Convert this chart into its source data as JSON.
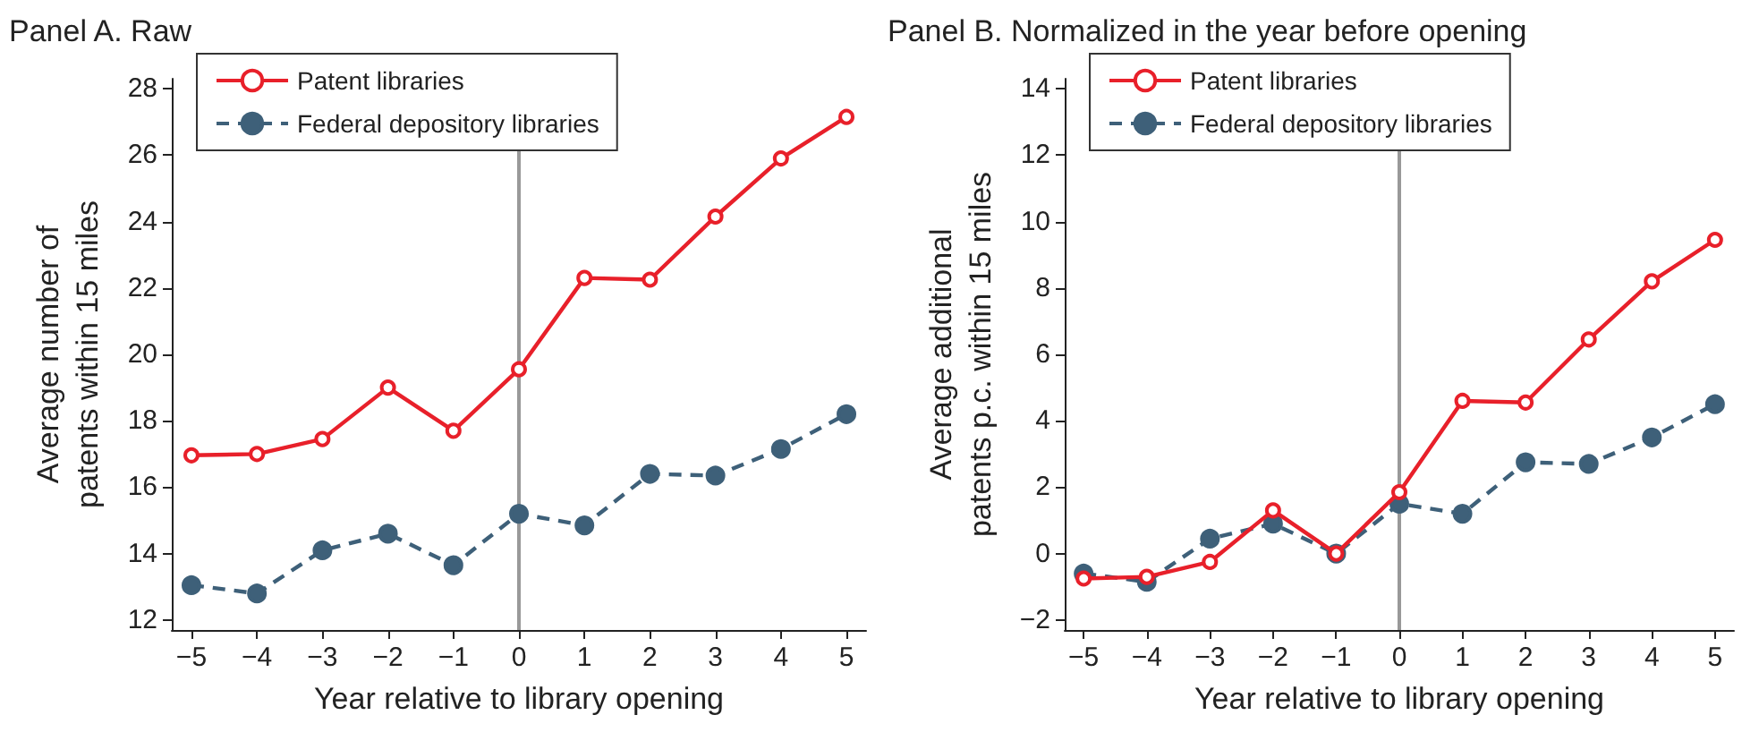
{
  "chart_data": [
    {
      "type": "line",
      "title": "Panel A. Raw",
      "xlabel": "Year relative to library opening",
      "ylabel": "Average number of\npatents within 15 miles",
      "x": [
        -5,
        -4,
        -3,
        -2,
        -1,
        0,
        1,
        2,
        3,
        4,
        5
      ],
      "xlim": [
        -5.3,
        5.3
      ],
      "xticks": [
        -5,
        -4,
        -3,
        -2,
        -1,
        0,
        1,
        2,
        3,
        4,
        5
      ],
      "ylim": [
        11.7,
        28.3
      ],
      "yticks": [
        12,
        14,
        16,
        18,
        20,
        22,
        24,
        26,
        28
      ],
      "grid": false,
      "legend": "top left",
      "marker": "circle",
      "ref_lines": [
        {
          "axis": "x",
          "value": 0,
          "color": "#999999"
        }
      ],
      "series": [
        {
          "name": "Patent libraries",
          "color": "#e8202a",
          "line_style": "solid",
          "values": [
            16.96,
            17.0,
            17.45,
            19.0,
            17.7,
            19.55,
            22.3,
            22.25,
            24.15,
            25.9,
            27.15
          ]
        },
        {
          "name": "Federal depository libraries",
          "color": "#3e6079",
          "line_style": "dashed",
          "values": [
            13.05,
            12.8,
            14.1,
            14.6,
            13.65,
            15.2,
            14.85,
            16.4,
            16.35,
            17.15,
            18.2
          ]
        }
      ]
    },
    {
      "type": "line",
      "title": "Panel B. Normalized in the year before opening",
      "xlabel": "Year relative to library opening",
      "ylabel": "Average additional\npatents p.c. within 15 miles",
      "x": [
        -5,
        -4,
        -3,
        -2,
        -1,
        0,
        1,
        2,
        3,
        4,
        5
      ],
      "xlim": [
        -5.3,
        5.3
      ],
      "xticks": [
        -5,
        -4,
        -3,
        -2,
        -1,
        0,
        1,
        2,
        3,
        4,
        5
      ],
      "ylim": [
        -2.3,
        14.3
      ],
      "yticks": [
        -2,
        0,
        2,
        4,
        6,
        8,
        10,
        12,
        14
      ],
      "grid": false,
      "legend": "top left",
      "marker": "circle",
      "ref_lines": [
        {
          "axis": "x",
          "value": 0,
          "color": "#999999"
        }
      ],
      "series": [
        {
          "name": "Patent libraries",
          "color": "#e8202a",
          "line_style": "solid",
          "values": [
            -0.75,
            -0.7,
            -0.25,
            1.3,
            0,
            1.85,
            4.6,
            4.55,
            6.45,
            8.2,
            9.45
          ]
        },
        {
          "name": "Federal depository libraries",
          "color": "#3e6079",
          "line_style": "dashed",
          "values": [
            -0.6,
            -0.85,
            0.45,
            0.9,
            0,
            1.5,
            1.2,
            2.75,
            2.7,
            3.5,
            4.5
          ]
        }
      ]
    }
  ]
}
